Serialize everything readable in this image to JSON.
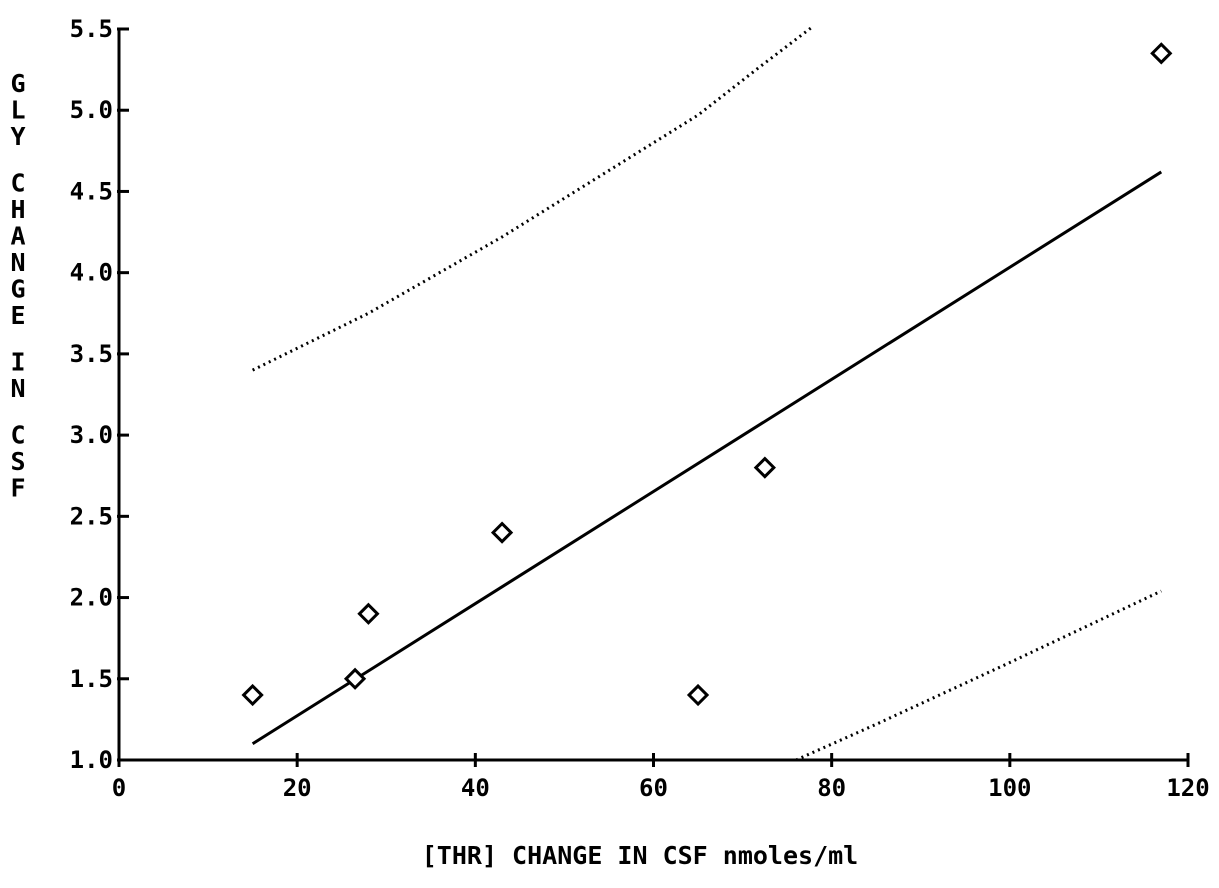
{
  "chart_data": {
    "type": "scatter",
    "title": "",
    "xlabel": "[THR] CHANGE IN CSF nmoles/ml",
    "ylabel": "GLY CHANGE IN CSF",
    "xlim": [
      0,
      120
    ],
    "ylim": [
      1.0,
      5.5
    ],
    "x_ticks": [
      0,
      20,
      40,
      60,
      80,
      100,
      120
    ],
    "x_tick_labels": [
      "0",
      "20",
      "40",
      "60",
      "80",
      "100",
      "120"
    ],
    "y_ticks": [
      1.0,
      1.5,
      2.0,
      2.5,
      3.0,
      3.5,
      4.0,
      4.5,
      5.0,
      5.5
    ],
    "y_tick_labels": [
      "1.0",
      "1.5",
      "2.0",
      "2.5",
      "3.0",
      "3.5",
      "4.0",
      "4.5",
      "5.0",
      "5.5"
    ],
    "grid": false,
    "legend": "none",
    "colors": {
      "ink": "#000000",
      "background": "#ffffff"
    },
    "points": {
      "marker": "diamond",
      "x": [
        15,
        26.5,
        28,
        43,
        65,
        72.5,
        117
      ],
      "y": [
        1.4,
        1.5,
        1.9,
        2.4,
        1.4,
        2.8,
        5.35
      ]
    },
    "regression_line": {
      "style": "solid",
      "x": [
        15,
        117
      ],
      "y": [
        1.1,
        4.62
      ]
    },
    "upper_confidence": {
      "style": "dotted",
      "x": [
        15,
        28,
        43,
        65,
        72,
        78
      ],
      "y": [
        3.4,
        3.75,
        4.22,
        4.97,
        5.27,
        5.52
      ]
    },
    "lower_confidence": {
      "style": "dotted",
      "x": [
        76,
        85,
        100,
        117
      ],
      "y": [
        1.0,
        1.22,
        1.6,
        2.04
      ]
    }
  }
}
